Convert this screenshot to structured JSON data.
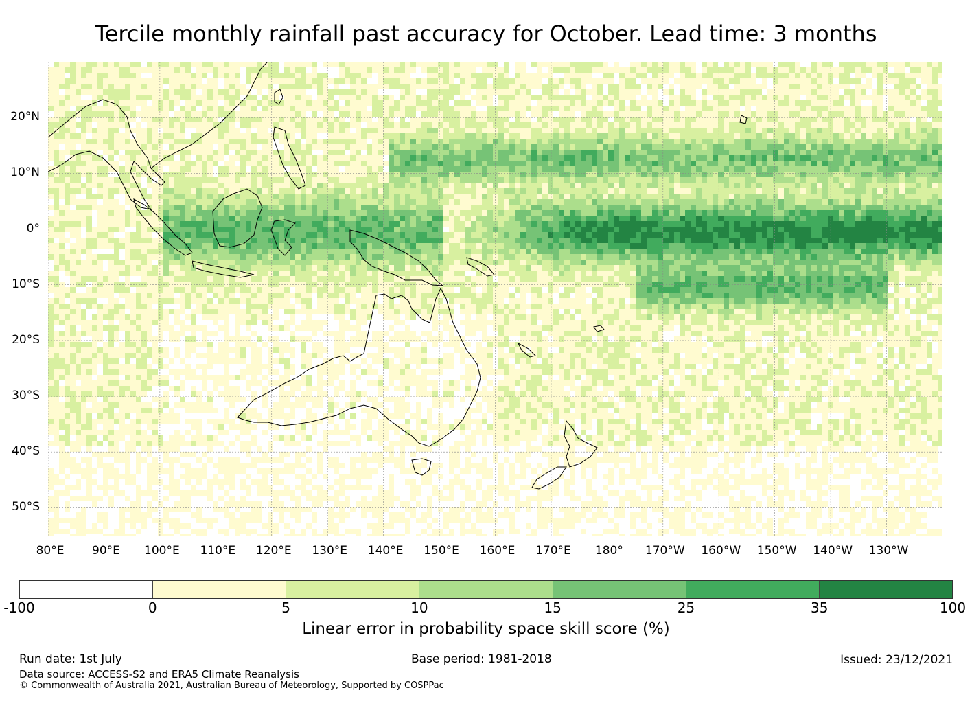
{
  "title": "Tercile monthly rainfall past accuracy for October. Lead time: 3 months",
  "map": {
    "lat_labels": [
      "20°N",
      "10°N",
      "0°",
      "10°S",
      "20°S",
      "30°S",
      "40°S",
      "50°S"
    ],
    "lon_labels": [
      "80°E",
      "90°E",
      "100°E",
      "110°E",
      "120°E",
      "130°E",
      "140°E",
      "150°E",
      "160°E",
      "170°E",
      "180°",
      "170°W",
      "160°W",
      "150°W",
      "140°W",
      "130°W"
    ],
    "lon_range": [
      80,
      240
    ],
    "lat_range": [
      -55,
      30
    ],
    "gridlines": true,
    "category_colors": [
      "#ffffff",
      "#fffbd0",
      "#d8f0a0",
      "#acde8c",
      "#76c376",
      "#41ab5d",
      "#238443"
    ]
  },
  "colorbar": {
    "ticks": [
      "-100",
      "0",
      "5",
      "10",
      "15",
      "25",
      "35",
      "100"
    ],
    "colors": [
      "#ffffff",
      "#fffbd0",
      "#d8f0a0",
      "#acde8c",
      "#76c376",
      "#41ab5d",
      "#238443"
    ],
    "label": "Linear error in probability space skill score (%)"
  },
  "footer": {
    "run_date": "Run date: 1st July",
    "base_period": "Base period: 1981-2018",
    "issued": "Issued: 23/12/2021",
    "data_source": "Data source: ACCESS-S2 and ERA5 Climate Reanalysis",
    "copyright": "© Commonwealth of Australia 2021, Australian Bureau of Meteorology, Supported by COSPPac"
  }
}
